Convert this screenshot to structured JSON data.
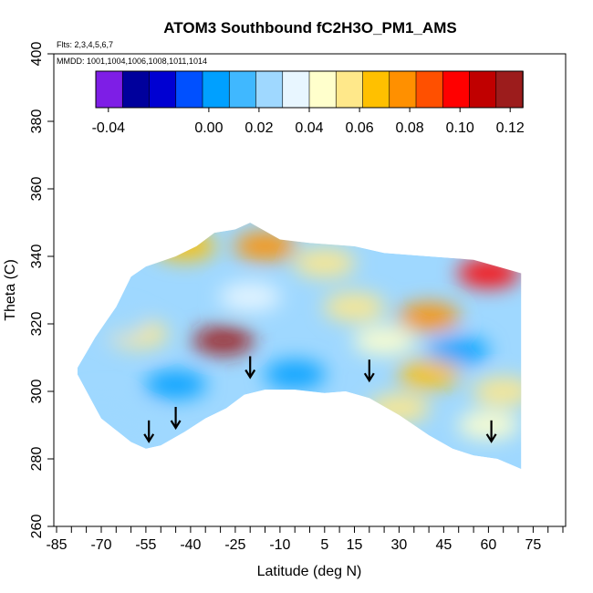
{
  "chart_data": {
    "type": "heatmap",
    "title": "ATOM3 Southbound fC2H3O_PM1_AMS",
    "flights_note": "Flts: 2,3,4,5,6,7",
    "dates_note": "MMDD: 1001,1004,1006,1008,1011,1014",
    "xlabel": "Latitude (deg N)",
    "ylabel": "Theta (C)",
    "xlim": [
      -85,
      85
    ],
    "ylim": [
      260,
      400
    ],
    "x_ticks": [
      -85,
      -70,
      -55,
      -40,
      -25,
      -10,
      5,
      15,
      30,
      45,
      60,
      75
    ],
    "y_ticks": [
      260,
      280,
      300,
      320,
      340,
      360,
      380,
      400
    ],
    "colorbar": {
      "vmin": -0.045,
      "vmax": 0.125,
      "tick_values": [
        -0.04,
        0.0,
        0.02,
        0.04,
        0.06,
        0.08,
        0.1,
        0.12
      ],
      "tick_labels": [
        "-0.04",
        "0.00",
        "0.02",
        "0.04",
        "0.06",
        "0.08",
        "0.10",
        "0.12"
      ],
      "colors": [
        "#7e1ee6",
        "#00009c",
        "#0000d2",
        "#0050ff",
        "#00a0ff",
        "#40b8ff",
        "#9fd8ff",
        "#e8f6ff",
        "#ffffcc",
        "#ffe88a",
        "#ffc000",
        "#ff9000",
        "#ff5000",
        "#ff0000",
        "#c00000",
        "#9c1c1c"
      ]
    },
    "coverage": {
      "lower_boundary": [
        [
          -78,
          305
        ],
        [
          -70,
          292
        ],
        [
          -60,
          285
        ],
        [
          -55,
          283
        ],
        [
          -50,
          284
        ],
        [
          -42,
          288
        ],
        [
          -35,
          292
        ],
        [
          -28,
          295
        ],
        [
          -22,
          299
        ],
        [
          -15,
          300.5
        ],
        [
          -5,
          300.5
        ],
        [
          5,
          299.5
        ],
        [
          12,
          300
        ],
        [
          20,
          298
        ],
        [
          30,
          293
        ],
        [
          40,
          287
        ],
        [
          48,
          283
        ],
        [
          55,
          281
        ],
        [
          63,
          280
        ],
        [
          71,
          277
        ]
      ],
      "upper_boundary": [
        [
          -78,
          307
        ],
        [
          -72,
          316
        ],
        [
          -65,
          325
        ],
        [
          -60,
          334
        ],
        [
          -55,
          337
        ],
        [
          -45,
          340
        ],
        [
          -38,
          343
        ],
        [
          -32,
          347
        ],
        [
          -25,
          348
        ],
        [
          -20,
          350
        ],
        [
          -10,
          345
        ],
        [
          0,
          344
        ],
        [
          15,
          343
        ],
        [
          25,
          341
        ],
        [
          40,
          340
        ],
        [
          55,
          339
        ],
        [
          71,
          335
        ]
      ]
    },
    "hotspots": [
      {
        "lat": -15,
        "theta": 343,
        "value": 0.08
      },
      {
        "lat": -42,
        "theta": 343,
        "value": 0.07
      },
      {
        "lat": 60,
        "theta": 335,
        "value": 0.1
      },
      {
        "lat": 40,
        "theta": 322,
        "value": 0.075
      },
      {
        "lat": -29,
        "theta": 315,
        "value": 0.12
      },
      {
        "lat": -58,
        "theta": 317,
        "value": 0.055
      },
      {
        "lat": 50,
        "theta": 312,
        "value": 0.0
      },
      {
        "lat": 40,
        "theta": 305,
        "value": 0.065
      },
      {
        "lat": -5,
        "theta": 305,
        "value": 0.005
      },
      {
        "lat": -45,
        "theta": 302,
        "value": 0.005
      },
      {
        "lat": -20,
        "theta": 328,
        "value": 0.03
      },
      {
        "lat": 15,
        "theta": 325,
        "value": 0.06
      },
      {
        "lat": 5,
        "theta": 338,
        "value": 0.06
      },
      {
        "lat": -65,
        "theta": 320,
        "value": 0.022
      },
      {
        "lat": 25,
        "theta": 315,
        "value": 0.05
      },
      {
        "lat": 60,
        "theta": 290,
        "value": 0.045
      },
      {
        "lat": 65,
        "theta": 300,
        "value": 0.055
      },
      {
        "lat": -70,
        "theta": 295,
        "value": 0.02
      },
      {
        "lat": -60,
        "theta": 290,
        "value": 0.025
      },
      {
        "lat": 30,
        "theta": 295,
        "value": 0.055
      }
    ],
    "arrows": [
      {
        "lat": -54,
        "theta": 286
      },
      {
        "lat": -45,
        "theta": 290
      },
      {
        "lat": -20,
        "theta": 305
      },
      {
        "lat": 20,
        "theta": 304
      },
      {
        "lat": 61,
        "theta": 286
      }
    ]
  }
}
